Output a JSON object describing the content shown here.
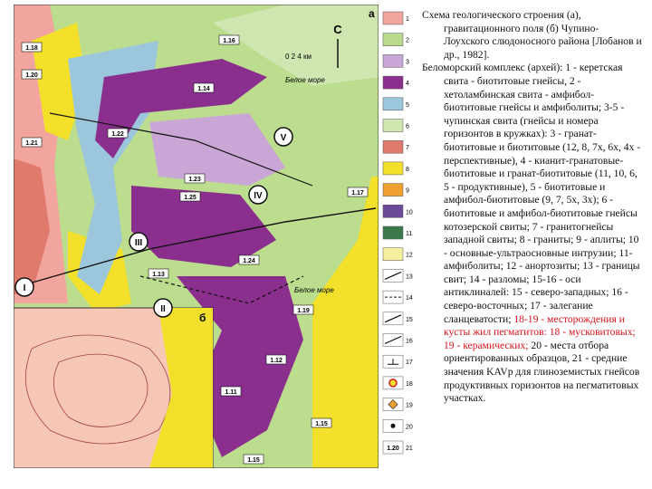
{
  "map": {
    "panel_a": "а",
    "panel_b": "б",
    "north": "С",
    "scale": "0 2 4 км",
    "sea_labels": [
      "Белое море",
      "Белое море"
    ],
    "zones": [
      "I",
      "II",
      "III",
      "IV",
      "V"
    ],
    "sample_labels": [
      "1.16",
      "1.18",
      "1.20",
      "1.21",
      "1.22",
      "1.14",
      "1.17",
      "1.25",
      "1.23",
      "1.24",
      "1.19",
      "1.15",
      "1.13",
      "1.11",
      "1.12",
      "1.15"
    ]
  },
  "legend": {
    "numbers": [
      "1",
      "2",
      "3",
      "4",
      "5",
      "6",
      "7",
      "8",
      "9",
      "10",
      "11",
      "12",
      "13",
      "14",
      "15",
      "16",
      "17",
      "18",
      "19",
      "20",
      "21"
    ],
    "sample_box": "1.20"
  },
  "caption": {
    "title": "Схема геологического строения (а), гравитационного поля (б) Чупино-Лоухского слюдоносного района [Лобанов и др., 1982].",
    "body": [
      {
        "text": "Беломорский комплекс (архей): 1 - керетская свита - биотитовые гнейсы, 2 - хетоламбинская свита - амфибол- биотитовые гнейсы и амфиболиты; 3-5 - чупинская свита (гнейсы и номера горизонтов в кружках): 3 - гранат- биотитовые и биотитовые (12, 8, 7х, 6х, 4х - перспективные), 4 - кианит-гранатовые-биотитовые и гранат-биотитовые (11, 10, 6, 5 - продуктивные), 5 - биотитовые и амфибол-биотитовые (9, 7, 5х, 3х); 6 - биотитовые и амфибол-биотитовые гнейсы котозерской свиты; 7 - гранитогнейсы западной свиты; 8 - граниты; 9 - аплиты; 10 - основные-ультраосновные интрузии; 11- амфиболиты; 12 - анортозиты; 13 - границы свит; 14 - разломы; 15-16 - оси антиклиналей: 15 - северо-западных; 16 - северо-восточных; 17 - залегание сланцеватости; ",
        "highlight": false
      },
      {
        "text": "18-19 - месторождения и кусты жил пегматитов: 18 - мусковитовых; 19 - керамических;",
        "highlight": true
      },
      {
        "text": " 20 - места отбора ориентированных образцов, 21 - средние значения KAVp для глиноземистых гнейсов продуктивных горизонтов на пегматитовых участках.",
        "highlight": false
      }
    ]
  }
}
